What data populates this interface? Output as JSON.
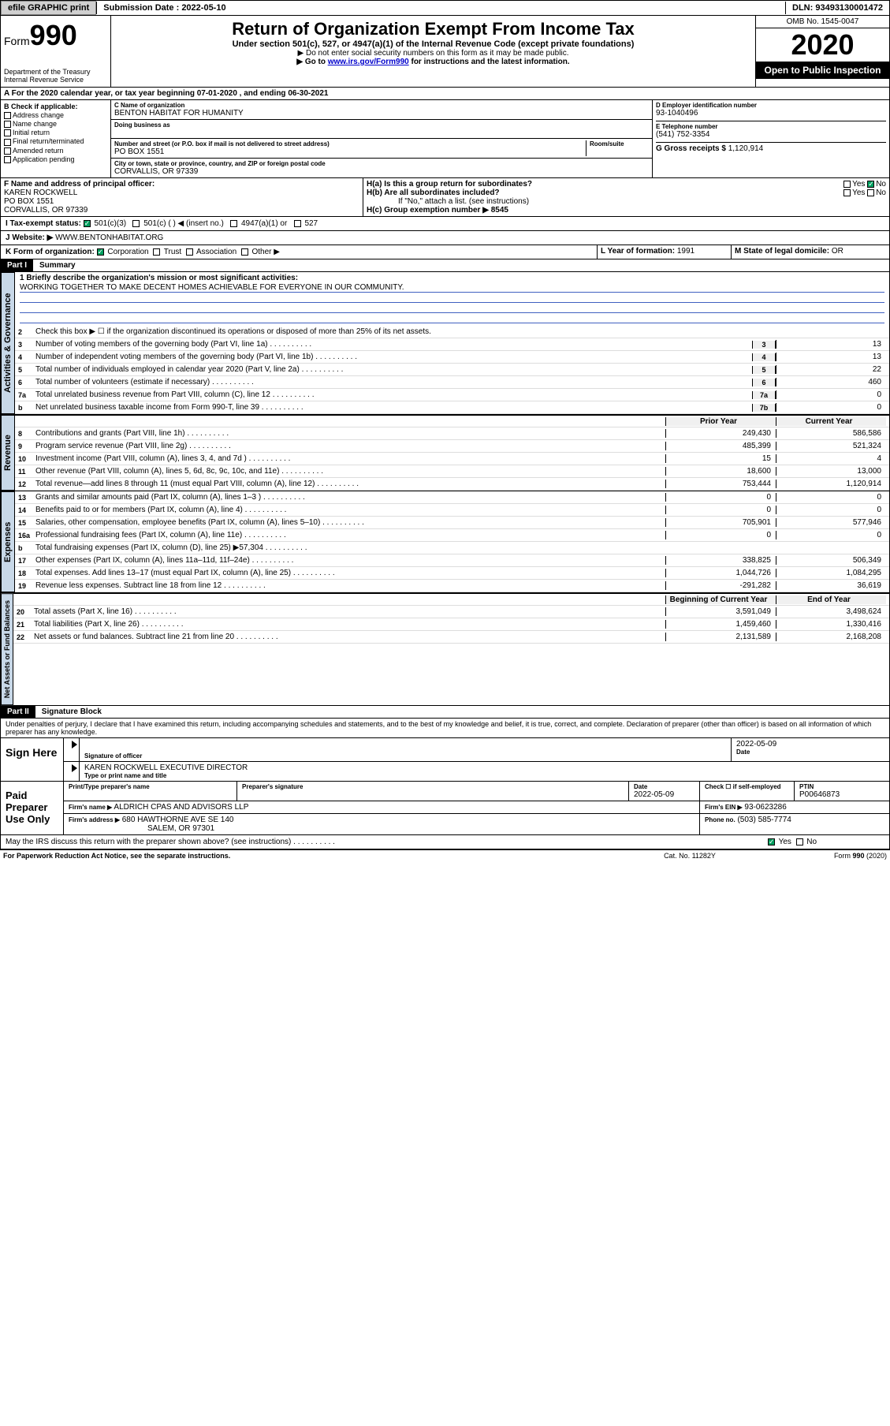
{
  "topbar": {
    "efile": "efile GRAPHIC print",
    "submission_label": "Submission Date : 2022-05-10",
    "dln": "DLN: 93493130001472"
  },
  "header": {
    "form_label": "Form",
    "form_number": "990",
    "dept": "Department of the Treasury\nInternal Revenue Service",
    "title": "Return of Organization Exempt From Income Tax",
    "subtitle": "Under section 501(c), 527, or 4947(a)(1) of the Internal Revenue Code (except private foundations)",
    "note1": "▶ Do not enter social security numbers on this form as it may be made public.",
    "note2_pre": "▶ Go to ",
    "note2_link": "www.irs.gov/Form990",
    "note2_post": " for instructions and the latest information.",
    "omb": "OMB No. 1545-0047",
    "year": "2020",
    "open": "Open to Public Inspection"
  },
  "line_a": "A For the 2020 calendar year, or tax year beginning 07-01-2020   , and ending 06-30-2021",
  "section_b": {
    "header": "B Check if applicable:",
    "items": [
      "Address change",
      "Name change",
      "Initial return",
      "Final return/terminated",
      "Amended return",
      "Application pending"
    ]
  },
  "section_c": {
    "name_label": "C Name of organization",
    "name": "BENTON HABITAT FOR HUMANITY",
    "dba_label": "Doing business as",
    "addr_label": "Number and street (or P.O. box if mail is not delivered to street address)",
    "room_label": "Room/suite",
    "addr": "PO BOX 1551",
    "city_label": "City or town, state or province, country, and ZIP or foreign postal code",
    "city": "CORVALLIS, OR  97339"
  },
  "section_d": {
    "ein_label": "D Employer identification number",
    "ein": "93-1040496",
    "tel_label": "E Telephone number",
    "tel": "(541) 752-3354",
    "gross_label": "G Gross receipts $",
    "gross": "1,120,914"
  },
  "section_f": {
    "label": "F  Name and address of principal officer:",
    "name": "KAREN ROCKWELL",
    "addr1": "PO BOX 1551",
    "addr2": "CORVALLIS, OR  97339"
  },
  "section_h": {
    "ha": "H(a)  Is this a group return for subordinates?",
    "hb": "H(b)  Are all subordinates included?",
    "hb_note": "If \"No,\" attach a list. (see instructions)",
    "hc": "H(c)  Group exemption number ▶   8545",
    "yes": "Yes",
    "no": "No"
  },
  "section_i": {
    "label": "I  Tax-exempt status:",
    "opts": [
      "501(c)(3)",
      "501(c) (  ) ◀ (insert no.)",
      "4947(a)(1) or",
      "527"
    ]
  },
  "section_j": {
    "label": "J   Website: ▶",
    "url": "WWW.BENTONHABITAT.ORG"
  },
  "section_k": {
    "label": "K Form of organization:",
    "opts": [
      "Corporation",
      "Trust",
      "Association",
      "Other ▶"
    ]
  },
  "section_l": {
    "label": "L Year of formation:",
    "val": "1991"
  },
  "section_m": {
    "label": "M State of legal domicile:",
    "val": "OR"
  },
  "part1": {
    "label": "Part I",
    "title": "Summary"
  },
  "summary": {
    "line1_label": "1  Briefly describe the organization's mission or most significant activities:",
    "line1_text": "WORKING TOGETHER TO MAKE DECENT HOMES ACHIEVABLE FOR EVERYONE IN OUR COMMUNITY.",
    "line2": "Check this box ▶ ☐  if the organization discontinued its operations or disposed of more than 25% of its net assets.",
    "rows_gov": [
      {
        "n": "3",
        "t": "Number of voting members of the governing body (Part VI, line 1a)",
        "box": "3",
        "v": "13"
      },
      {
        "n": "4",
        "t": "Number of independent voting members of the governing body (Part VI, line 1b)",
        "box": "4",
        "v": "13"
      },
      {
        "n": "5",
        "t": "Total number of individuals employed in calendar year 2020 (Part V, line 2a)",
        "box": "5",
        "v": "22"
      },
      {
        "n": "6",
        "t": "Total number of volunteers (estimate if necessary)",
        "box": "6",
        "v": "460"
      },
      {
        "n": "7a",
        "t": "Total unrelated business revenue from Part VIII, column (C), line 12",
        "box": "7a",
        "v": "0"
      },
      {
        "n": "b",
        "t": "Net unrelated business taxable income from Form 990-T, line 39",
        "box": "7b",
        "v": "0"
      }
    ],
    "col_prior": "Prior Year",
    "col_current": "Current Year",
    "rows_rev": [
      {
        "n": "8",
        "t": "Contributions and grants (Part VIII, line 1h)",
        "p": "249,430",
        "c": "586,586"
      },
      {
        "n": "9",
        "t": "Program service revenue (Part VIII, line 2g)",
        "p": "485,399",
        "c": "521,324"
      },
      {
        "n": "10",
        "t": "Investment income (Part VIII, column (A), lines 3, 4, and 7d )",
        "p": "15",
        "c": "4"
      },
      {
        "n": "11",
        "t": "Other revenue (Part VIII, column (A), lines 5, 6d, 8c, 9c, 10c, and 11e)",
        "p": "18,600",
        "c": "13,000"
      },
      {
        "n": "12",
        "t": "Total revenue—add lines 8 through 11 (must equal Part VIII, column (A), line 12)",
        "p": "753,444",
        "c": "1,120,914"
      }
    ],
    "rows_exp": [
      {
        "n": "13",
        "t": "Grants and similar amounts paid (Part IX, column (A), lines 1–3 )",
        "p": "0",
        "c": "0"
      },
      {
        "n": "14",
        "t": "Benefits paid to or for members (Part IX, column (A), line 4)",
        "p": "0",
        "c": "0"
      },
      {
        "n": "15",
        "t": "Salaries, other compensation, employee benefits (Part IX, column (A), lines 5–10)",
        "p": "705,901",
        "c": "577,946"
      },
      {
        "n": "16a",
        "t": "Professional fundraising fees (Part IX, column (A), line 11e)",
        "p": "0",
        "c": "0"
      },
      {
        "n": "b",
        "t": "Total fundraising expenses (Part IX, column (D), line 25) ▶57,304",
        "p": "",
        "c": ""
      },
      {
        "n": "17",
        "t": "Other expenses (Part IX, column (A), lines 11a–11d, 11f–24e)",
        "p": "338,825",
        "c": "506,349"
      },
      {
        "n": "18",
        "t": "Total expenses. Add lines 13–17 (must equal Part IX, column (A), line 25)",
        "p": "1,044,726",
        "c": "1,084,295"
      },
      {
        "n": "19",
        "t": "Revenue less expenses. Subtract line 18 from line 12",
        "p": "-291,282",
        "c": "36,619"
      }
    ],
    "col_beg": "Beginning of Current Year",
    "col_end": "End of Year",
    "rows_net": [
      {
        "n": "20",
        "t": "Total assets (Part X, line 16)",
        "p": "3,591,049",
        "c": "3,498,624"
      },
      {
        "n": "21",
        "t": "Total liabilities (Part X, line 26)",
        "p": "1,459,460",
        "c": "1,330,416"
      },
      {
        "n": "22",
        "t": "Net assets or fund balances. Subtract line 21 from line 20",
        "p": "2,131,589",
        "c": "2,168,208"
      }
    ]
  },
  "vtabs": {
    "gov": "Activities & Governance",
    "rev": "Revenue",
    "exp": "Expenses",
    "net": "Net Assets or Fund Balances"
  },
  "part2": {
    "label": "Part II",
    "title": "Signature Block"
  },
  "perjury": "Under penalties of perjury, I declare that I have examined this return, including accompanying schedules and statements, and to the best of my knowledge and belief, it is true, correct, and complete. Declaration of preparer (other than officer) is based on all information of which preparer has any knowledge.",
  "sign_here": {
    "label": "Sign Here",
    "sig_officer": "Signature of officer",
    "date_label": "Date",
    "date": "2022-05-09",
    "name": "KAREN ROCKWELL  EXECUTIVE DIRECTOR",
    "name_label": "Type or print name and title"
  },
  "paid_prep": {
    "label": "Paid Preparer Use Only",
    "print_name": "Print/Type preparer's name",
    "prep_sig": "Preparer's signature",
    "date_label": "Date",
    "date": "2022-05-09",
    "check_label": "Check ☐ if self-employed",
    "ptin_label": "PTIN",
    "ptin": "P00646873",
    "firm_name_label": "Firm's name    ▶",
    "firm_name": "ALDRICH CPAS AND ADVISORS LLP",
    "firm_ein_label": "Firm's EIN ▶",
    "firm_ein": "93-0623286",
    "firm_addr_label": "Firm's address ▶",
    "firm_addr": "680 HAWTHORNE AVE SE 140",
    "firm_city": "SALEM, OR  97301",
    "phone_label": "Phone no.",
    "phone": "(503) 585-7774"
  },
  "discuss": "May the IRS discuss this return with the preparer shown above? (see instructions)",
  "footer": {
    "left": "For Paperwork Reduction Act Notice, see the separate instructions.",
    "mid": "Cat. No. 11282Y",
    "right": "Form 990 (2020)"
  },
  "colors": {
    "link": "#0000cc",
    "vtab_bg": "#c8d8e8",
    "check_green": "#00a060"
  }
}
